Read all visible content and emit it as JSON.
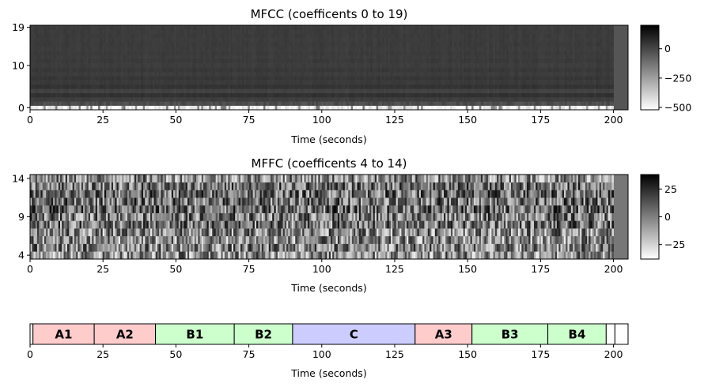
{
  "chart_data": [
    {
      "type": "heatmap",
      "title": "MFCC (coefficents 0 to 19)",
      "xlabel": "Time (seconds)",
      "ylabel": "",
      "xlim": [
        0,
        205
      ],
      "ylim": [
        -0.5,
        19.5
      ],
      "xticks": [
        0,
        25,
        50,
        75,
        100,
        125,
        150,
        175,
        200
      ],
      "yticks": [
        0,
        10,
        19
      ],
      "colormap": "gray_r",
      "colorbar": {
        "ticks": [
          0,
          -250,
          -500
        ],
        "range": [
          -520,
          200
        ]
      },
      "data_end": 200,
      "row_levels": [
        -510,
        -18,
        25,
        60,
        15,
        55,
        35,
        45,
        30,
        40,
        28,
        36,
        30,
        34,
        30,
        33,
        31,
        32,
        31,
        32
      ]
    },
    {
      "type": "heatmap",
      "title": "MFFC (coefficents 4 to 14)",
      "xlabel": "Time (seconds)",
      "ylabel": "",
      "xlim": [
        0,
        205
      ],
      "ylim": [
        3.5,
        14.5
      ],
      "xticks": [
        0,
        25,
        50,
        75,
        100,
        125,
        150,
        175,
        200
      ],
      "yticks": [
        4,
        9,
        14
      ],
      "colormap": "gray_r",
      "colorbar": {
        "ticks": [
          25,
          0,
          -25
        ],
        "range": [
          -38,
          38
        ]
      },
      "data_end": 200
    },
    {
      "type": "bar",
      "title": "",
      "xlabel": "Time (seconds)",
      "xlim": [
        0,
        205
      ],
      "xticks": [
        0,
        25,
        50,
        75,
        100,
        125,
        150,
        175,
        200
      ],
      "segments": [
        {
          "start": 0,
          "end": 1,
          "label": "",
          "color": "#ffffff"
        },
        {
          "start": 1,
          "end": 22,
          "label": "A1",
          "color": "#ffcccc"
        },
        {
          "start": 22,
          "end": 43,
          "label": "A2",
          "color": "#ffcccc"
        },
        {
          "start": 43,
          "end": 70,
          "label": "B1",
          "color": "#ccffcc"
        },
        {
          "start": 70,
          "end": 90,
          "label": "B2",
          "color": "#ccffcc"
        },
        {
          "start": 90,
          "end": 132,
          "label": "C",
          "color": "#ccccff"
        },
        {
          "start": 132,
          "end": 151.5,
          "label": "A3",
          "color": "#ffcccc"
        },
        {
          "start": 151.5,
          "end": 177.5,
          "label": "B3",
          "color": "#ccffcc"
        },
        {
          "start": 177.5,
          "end": 197.5,
          "label": "B4",
          "color": "#ccffcc"
        },
        {
          "start": 197.5,
          "end": 200.5,
          "label": "",
          "color": "#ffffff"
        },
        {
          "start": 200.5,
          "end": 205,
          "label": "",
          "color": "#ffffff"
        }
      ]
    }
  ]
}
